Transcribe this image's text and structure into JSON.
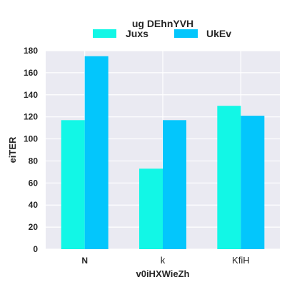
{
  "chart_data": {
    "type": "bar",
    "legend_title": "ug DEhnYVH",
    "legend_position": "top",
    "categories": [
      "N",
      "k",
      "KfiH"
    ],
    "series": [
      {
        "name": "Juxs",
        "color": "#12f7e6",
        "values": [
          117,
          73,
          130
        ]
      },
      {
        "name": "UkEv",
        "color": "#03c6fc",
        "values": [
          175,
          117,
          121
        ]
      }
    ],
    "xlabel": "v0iHXWieZh",
    "ylabel": "eiTER",
    "ylim": [
      0,
      180
    ],
    "yticks": [
      0,
      20,
      40,
      60,
      80,
      100,
      120,
      140,
      160,
      180
    ],
    "grid": true,
    "background": "#eaeaf2"
  }
}
